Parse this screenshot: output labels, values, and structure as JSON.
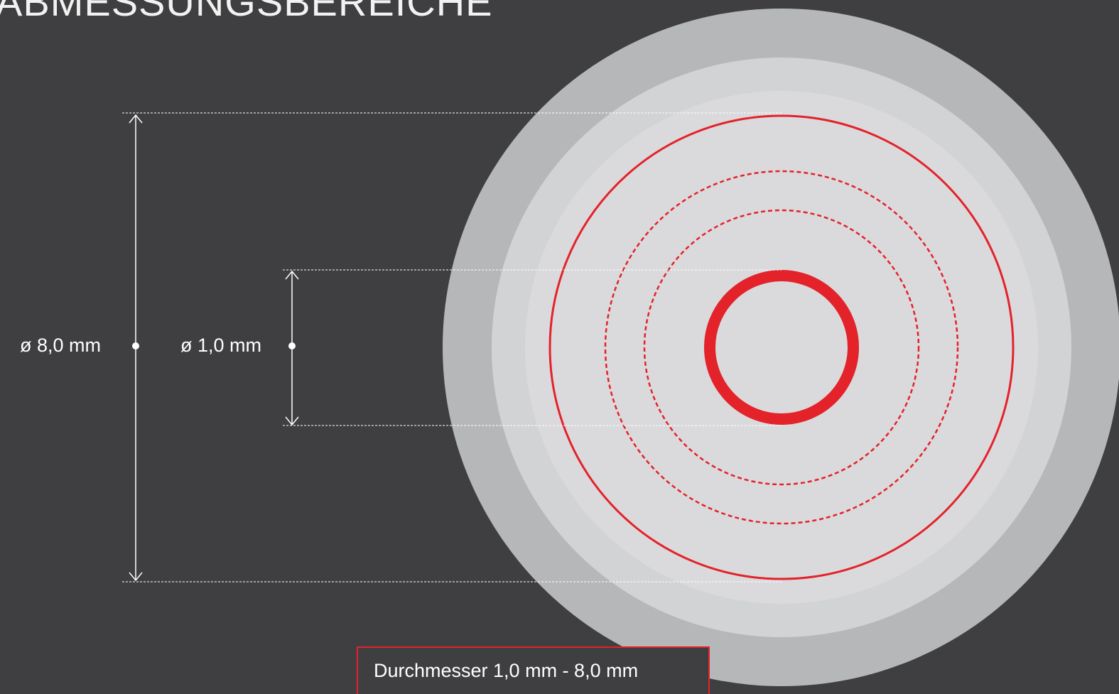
{
  "title": "ABMESSUNGSBEREICHE",
  "dimensions": {
    "outer_label": "ø 8,0 mm",
    "inner_label": "ø 1,0 mm"
  },
  "range_box": {
    "text": "Durchmesser 1,0 mm - 8,0 mm"
  },
  "colors": {
    "background": "#3f3f41",
    "accent_red": "#e4222a",
    "disc_outer": "#b6b7b9",
    "disc_middle": "#cfd0d1",
    "disc_inner": "#dadadc",
    "line_white": "#ffffff"
  }
}
